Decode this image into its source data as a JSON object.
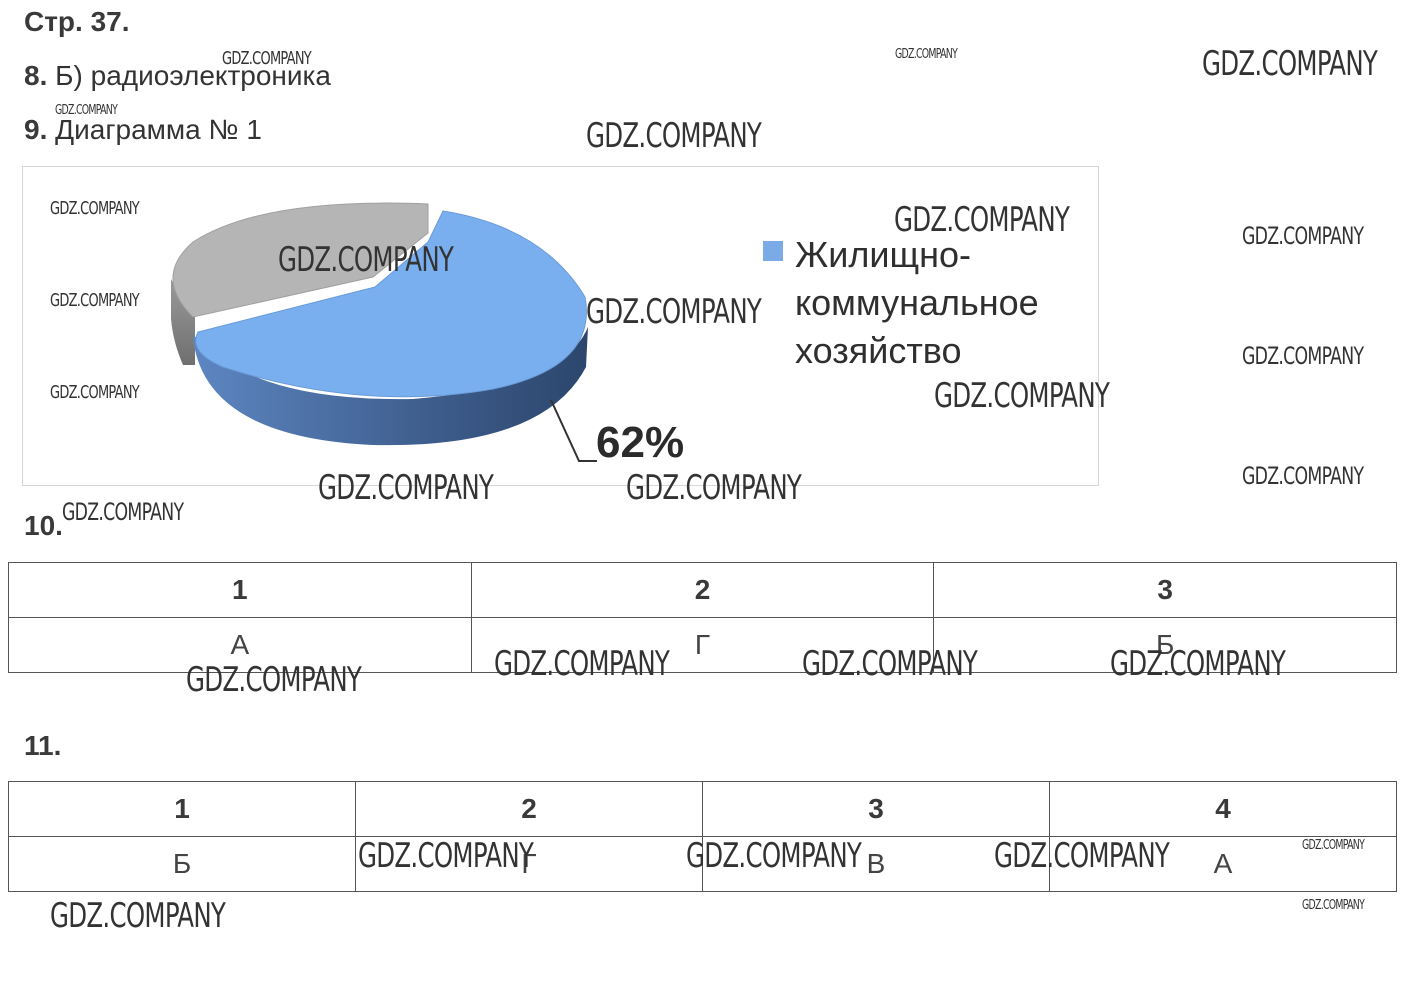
{
  "page": {
    "title": "Стр. 37."
  },
  "tasks": {
    "t8": {
      "num": "8.",
      "text": "Б) радиоэлектроника"
    },
    "t9": {
      "num": "9.",
      "text": "Диаграмма № 1"
    },
    "t10": {
      "num": "10.",
      "headers": [
        "1",
        "2",
        "3"
      ],
      "answers": [
        "А",
        "Г",
        "Б"
      ]
    },
    "t11": {
      "num": "11.",
      "headers": [
        "1",
        "2",
        "3",
        "4"
      ],
      "answers": [
        "Б",
        "Г",
        "В",
        "А"
      ]
    }
  },
  "chart_data": {
    "type": "pie",
    "slices": [
      {
        "name": "Жилищно-коммунальное хозяйство",
        "value": 62,
        "color": "#7aabe6"
      },
      {
        "name": "",
        "value": 38,
        "color": "#b5b5b5"
      }
    ],
    "legend": [
      "Жилищно-",
      "коммунальное",
      "хозяйство"
    ],
    "data_label": "62%"
  },
  "watermark": "GDZ.COMPANY"
}
